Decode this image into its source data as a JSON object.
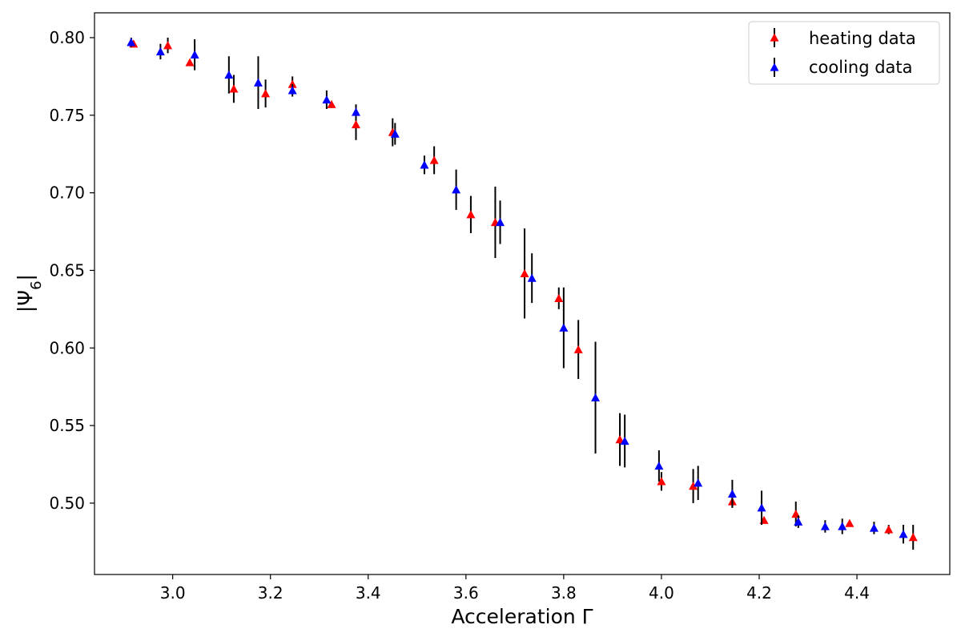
{
  "chart_data": {
    "type": "scatter",
    "xlabel": "Acceleration Γ",
    "ylabel": "|Ψ6|",
    "xlim": [
      2.84,
      4.59
    ],
    "ylim": [
      0.454,
      0.816
    ],
    "xticks": [
      "3.0",
      "3.2",
      "3.4",
      "3.6",
      "3.8",
      "4.0",
      "4.2",
      "4.4"
    ],
    "yticks": [
      "0.50",
      "0.55",
      "0.60",
      "0.65",
      "0.70",
      "0.75",
      "0.80"
    ],
    "grid": false,
    "legend_position": "top-right",
    "series": [
      {
        "name": "heating data",
        "color": "#ff0000",
        "marker": "triangle-up",
        "points": [
          {
            "x": 2.92,
            "y": 0.796,
            "err": 0.002
          },
          {
            "x": 2.99,
            "y": 0.795,
            "err": 0.005
          },
          {
            "x": 3.035,
            "y": 0.784,
            "err": 0.0
          },
          {
            "x": 3.125,
            "y": 0.767,
            "err": 0.009
          },
          {
            "x": 3.19,
            "y": 0.764,
            "err": 0.009
          },
          {
            "x": 3.245,
            "y": 0.77,
            "err": 0.005
          },
          {
            "x": 3.325,
            "y": 0.757,
            "err": 0.0
          },
          {
            "x": 3.375,
            "y": 0.744,
            "err": 0.01
          },
          {
            "x": 3.45,
            "y": 0.739,
            "err": 0.009
          },
          {
            "x": 3.535,
            "y": 0.721,
            "err": 0.009
          },
          {
            "x": 3.61,
            "y": 0.686,
            "err": 0.012
          },
          {
            "x": 3.66,
            "y": 0.681,
            "err": 0.023
          },
          {
            "x": 3.72,
            "y": 0.648,
            "err": 0.029
          },
          {
            "x": 3.79,
            "y": 0.632,
            "err": 0.007
          },
          {
            "x": 3.83,
            "y": 0.599,
            "err": 0.019
          },
          {
            "x": 3.915,
            "y": 0.541,
            "err": 0.017
          },
          {
            "x": 4.0,
            "y": 0.514,
            "err": 0.006
          },
          {
            "x": 4.065,
            "y": 0.511,
            "err": 0.011
          },
          {
            "x": 4.145,
            "y": 0.501,
            "err": 0.004
          },
          {
            "x": 4.21,
            "y": 0.489,
            "err": 0.002
          },
          {
            "x": 4.275,
            "y": 0.493,
            "err": 0.008
          },
          {
            "x": 4.385,
            "y": 0.487,
            "err": 0.0
          },
          {
            "x": 4.465,
            "y": 0.483,
            "err": 0.003
          },
          {
            "x": 4.515,
            "y": 0.478,
            "err": 0.008
          }
        ]
      },
      {
        "name": "cooling data",
        "color": "#0000ff",
        "marker": "triangle-up",
        "points": [
          {
            "x": 2.915,
            "y": 0.797,
            "err": 0.003
          },
          {
            "x": 2.975,
            "y": 0.791,
            "err": 0.005
          },
          {
            "x": 3.045,
            "y": 0.789,
            "err": 0.01
          },
          {
            "x": 3.115,
            "y": 0.776,
            "err": 0.012
          },
          {
            "x": 3.175,
            "y": 0.771,
            "err": 0.017
          },
          {
            "x": 3.245,
            "y": 0.766,
            "err": 0.004
          },
          {
            "x": 3.315,
            "y": 0.76,
            "err": 0.006
          },
          {
            "x": 3.375,
            "y": 0.752,
            "err": 0.005
          },
          {
            "x": 3.455,
            "y": 0.738,
            "err": 0.007
          },
          {
            "x": 3.515,
            "y": 0.718,
            "err": 0.006
          },
          {
            "x": 3.58,
            "y": 0.702,
            "err": 0.013
          },
          {
            "x": 3.67,
            "y": 0.681,
            "err": 0.014
          },
          {
            "x": 3.735,
            "y": 0.645,
            "err": 0.016
          },
          {
            "x": 3.8,
            "y": 0.613,
            "err": 0.026
          },
          {
            "x": 3.865,
            "y": 0.568,
            "err": 0.036
          },
          {
            "x": 3.925,
            "y": 0.54,
            "err": 0.017
          },
          {
            "x": 3.995,
            "y": 0.524,
            "err": 0.01
          },
          {
            "x": 4.075,
            "y": 0.513,
            "err": 0.011
          },
          {
            "x": 4.145,
            "y": 0.506,
            "err": 0.009
          },
          {
            "x": 4.205,
            "y": 0.497,
            "err": 0.011
          },
          {
            "x": 4.28,
            "y": 0.488,
            "err": 0.004
          },
          {
            "x": 4.335,
            "y": 0.485,
            "err": 0.004
          },
          {
            "x": 4.37,
            "y": 0.485,
            "err": 0.005
          },
          {
            "x": 4.435,
            "y": 0.484,
            "err": 0.004
          },
          {
            "x": 4.495,
            "y": 0.48,
            "err": 0.006
          }
        ]
      }
    ]
  }
}
